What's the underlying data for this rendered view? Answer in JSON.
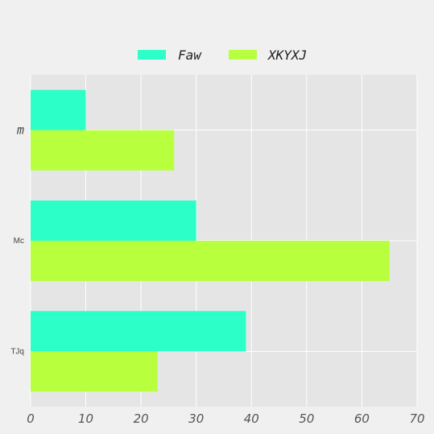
{
  "chart_data": {
    "type": "bar",
    "orientation": "horizontal",
    "categories": [
      "m",
      "Mc",
      "TJq"
    ],
    "series": [
      {
        "name": "Faw",
        "values": [
          10,
          30,
          39
        ],
        "color": "#2cffc7"
      },
      {
        "name": "XKYXJ",
        "values": [
          26,
          65,
          23
        ],
        "color": "#b8ff3e"
      }
    ],
    "xlim": [
      0,
      70
    ],
    "xticks": [
      "0",
      "10",
      "20",
      "30",
      "40",
      "50",
      "60",
      "70"
    ],
    "title": "",
    "xlabel": "",
    "ylabel": "",
    "grid": true,
    "legend_position": "top-center",
    "plot_background": "#e5e5e5",
    "figure_background": "#f0f0f0"
  }
}
